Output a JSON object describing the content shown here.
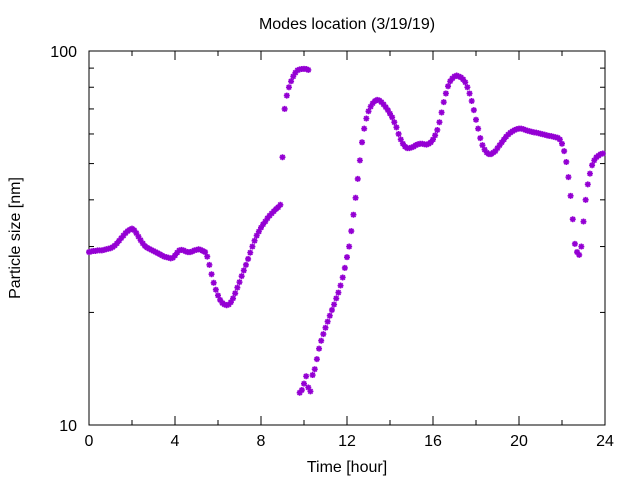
{
  "chart_data": {
    "type": "scatter",
    "title": "Modes location (3/19/19)",
    "xlabel": "Time [hour]",
    "ylabel": "Particle size [nm]",
    "xlim": [
      0,
      24
    ],
    "ylim": [
      10,
      100
    ],
    "yscale": "log",
    "grid": false,
    "legend": "none",
    "xticks": [
      0,
      4,
      8,
      12,
      16,
      20,
      24
    ],
    "xtick_labels": [
      "0",
      "4",
      "8",
      "12",
      "16",
      "20",
      "24"
    ],
    "yticks": [
      10,
      100
    ],
    "ytick_labels": [
      "10",
      "100"
    ],
    "marker_color": "#9400d3",
    "series": [
      {
        "x": [
          0.0,
          0.1,
          0.2,
          0.3,
          0.4,
          0.5,
          0.6,
          0.7,
          0.8,
          0.9,
          1.0,
          1.1,
          1.2,
          1.3,
          1.4,
          1.5,
          1.6,
          1.7,
          1.8,
          1.9,
          2.0,
          2.1,
          2.2,
          2.3,
          2.4,
          2.5,
          2.6,
          2.7,
          2.8,
          2.9,
          3.0,
          3.1,
          3.2,
          3.3,
          3.4,
          3.5,
          3.6,
          3.7,
          3.8,
          3.9,
          4.0,
          4.1,
          4.2,
          4.3,
          4.4,
          4.5,
          4.6,
          4.7,
          4.8,
          4.9,
          5.0,
          5.1,
          5.2,
          5.3,
          5.4,
          5.5,
          5.6,
          5.7,
          5.8,
          5.9,
          6.0,
          6.1,
          6.2,
          6.3,
          6.4,
          6.5,
          6.6,
          6.7,
          6.8,
          6.9,
          7.0,
          7.1,
          7.2,
          7.3,
          7.4,
          7.5,
          7.6,
          7.7,
          7.8,
          7.9,
          8.0,
          8.1,
          8.2,
          8.3,
          8.4,
          8.5,
          8.6,
          8.7,
          8.8,
          8.9,
          9.0,
          9.1,
          9.2,
          9.3,
          9.4,
          9.5,
          9.6,
          9.7,
          9.8,
          9.9,
          10.0,
          10.1,
          10.2,
          9.8,
          9.9,
          10.0,
          10.1,
          10.2,
          10.3,
          10.4,
          10.5,
          10.6,
          10.7,
          10.8,
          10.9,
          11.0,
          11.1,
          11.2,
          11.3,
          11.4,
          11.5,
          11.6,
          11.7,
          11.8,
          11.9,
          12.0,
          12.1,
          12.2,
          12.3,
          12.4,
          12.5,
          12.6,
          12.7,
          12.8,
          12.9,
          13.0,
          13.1,
          13.2,
          13.3,
          13.4,
          13.5,
          13.6,
          13.7,
          13.8,
          13.9,
          14.0,
          14.1,
          14.2,
          14.3,
          14.4,
          14.5,
          14.6,
          14.7,
          14.8,
          14.9,
          15.0,
          15.1,
          15.2,
          15.3,
          15.4,
          15.5,
          15.6,
          15.7,
          15.8,
          15.9,
          16.0,
          16.1,
          16.2,
          16.3,
          16.4,
          16.5,
          16.6,
          16.7,
          16.8,
          16.9,
          17.0,
          17.1,
          17.2,
          17.3,
          17.4,
          17.5,
          17.6,
          17.7,
          17.8,
          17.9,
          18.0,
          18.1,
          18.2,
          18.3,
          18.4,
          18.5,
          18.6,
          18.7,
          18.8,
          18.9,
          19.0,
          19.1,
          19.2,
          19.3,
          19.4,
          19.5,
          19.6,
          19.7,
          19.8,
          19.9,
          20.0,
          20.1,
          20.2,
          20.3,
          20.4,
          20.5,
          20.6,
          20.7,
          20.8,
          20.9,
          21.0,
          21.1,
          21.2,
          21.3,
          21.4,
          21.5,
          21.6,
          21.7,
          21.8,
          21.9,
          22.0,
          22.1,
          22.2,
          22.3,
          22.4,
          22.5,
          22.6,
          22.7,
          22.8,
          22.9,
          23.0,
          23.1,
          23.2,
          23.3,
          23.4,
          23.5,
          23.6,
          23.7,
          23.8,
          23.9
        ],
        "y": [
          29.0,
          29.1,
          29.2,
          29.2,
          29.3,
          29.3,
          29.3,
          29.4,
          29.5,
          29.6,
          29.7,
          29.9,
          30.2,
          30.6,
          31.1,
          31.6,
          32.1,
          32.6,
          33.0,
          33.3,
          33.5,
          33.2,
          32.6,
          31.9,
          31.2,
          30.6,
          30.1,
          29.8,
          29.6,
          29.4,
          29.2,
          29.0,
          28.8,
          28.6,
          28.4,
          28.2,
          28.1,
          28.0,
          27.9,
          28.0,
          28.4,
          28.9,
          29.3,
          29.4,
          29.3,
          29.1,
          29.0,
          29.0,
          29.1,
          29.3,
          29.4,
          29.5,
          29.4,
          29.2,
          29.0,
          28.2,
          26.8,
          25.3,
          24.0,
          23.0,
          22.2,
          21.6,
          21.2,
          21.0,
          20.9,
          21.0,
          21.3,
          21.8,
          22.5,
          23.3,
          24.1,
          25.0,
          25.9,
          26.8,
          27.8,
          28.9,
          30.0,
          31.1,
          32.1,
          32.9,
          33.7,
          34.4,
          35.0,
          35.7,
          36.3,
          36.8,
          37.3,
          37.8,
          38.2,
          38.8,
          52.0,
          70.0,
          76.0,
          80.0,
          83.0,
          85.5,
          87.5,
          88.8,
          89.3,
          89.5,
          89.6,
          89.5,
          89.0,
          12.2,
          12.4,
          12.9,
          13.5,
          12.6,
          12.3,
          13.6,
          14.1,
          15.0,
          16.0,
          16.8,
          17.5,
          18.2,
          18.9,
          19.6,
          20.3,
          21.0,
          21.8,
          22.6,
          23.6,
          24.8,
          26.3,
          28.1,
          30.0,
          33.0,
          36.5,
          40.5,
          45.5,
          51.0,
          57.0,
          62.0,
          66.0,
          69.0,
          71.0,
          72.5,
          73.5,
          74.0,
          73.8,
          73.0,
          72.0,
          70.8,
          69.5,
          68.0,
          66.5,
          64.5,
          62.5,
          60.0,
          58.0,
          56.5,
          55.5,
          55.0,
          55.0,
          55.2,
          55.5,
          56.0,
          56.3,
          56.5,
          56.5,
          56.3,
          56.2,
          56.5,
          57.0,
          58.0,
          59.5,
          61.5,
          64.5,
          68.5,
          73.0,
          77.0,
          80.5,
          83.0,
          84.5,
          85.5,
          86.0,
          85.5,
          85.0,
          84.0,
          82.5,
          80.0,
          77.0,
          73.5,
          69.5,
          65.5,
          62.0,
          58.5,
          56.0,
          54.5,
          53.5,
          53.0,
          53.0,
          53.5,
          54.0,
          55.0,
          56.0,
          57.0,
          58.0,
          59.0,
          59.8,
          60.5,
          61.0,
          61.5,
          61.8,
          62.0,
          62.0,
          61.8,
          61.5,
          61.2,
          61.0,
          60.8,
          60.6,
          60.5,
          60.3,
          60.1,
          59.9,
          59.7,
          59.5,
          59.3,
          59.2,
          59.0,
          58.8,
          58.6,
          58.0,
          56.5,
          54.0,
          50.5,
          46.0,
          41.0,
          35.5,
          30.5,
          29.0,
          28.5,
          30.0,
          35.0,
          40.0,
          44.0,
          47.0,
          49.5,
          51.0,
          52.0,
          52.5,
          53.0,
          53.2
        ]
      }
    ]
  }
}
